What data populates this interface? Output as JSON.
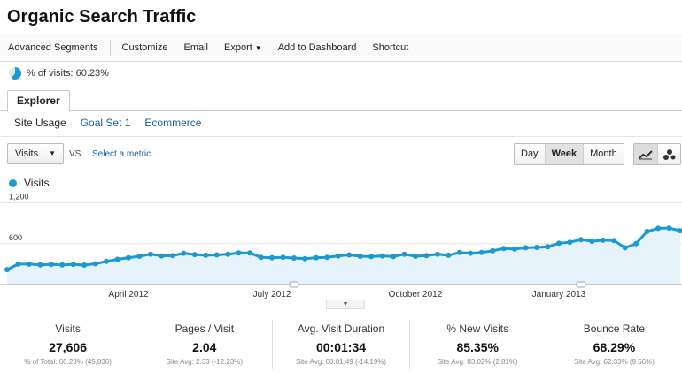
{
  "title": "Organic Search Traffic",
  "toolbar": {
    "advanced_segments": "Advanced Segments",
    "customize": "Customize",
    "email": "Email",
    "export": "Export",
    "add_to_dashboard": "Add to Dashboard",
    "shortcut": "Shortcut"
  },
  "segment": {
    "label": "% of visits: 60.23%",
    "fraction": 0.6023
  },
  "tab": {
    "explorer": "Explorer"
  },
  "subtabs": {
    "site_usage": "Site Usage",
    "goal_set": "Goal Set 1",
    "ecommerce": "Ecommerce"
  },
  "controls": {
    "metric": "Visits",
    "vs": "VS.",
    "select_metric": "Select a metric",
    "day": "Day",
    "week": "Week",
    "month": "Month",
    "selected_period": "Week"
  },
  "legend": {
    "series_name": "Visits"
  },
  "colors": {
    "series": "#1a9ad0",
    "fill": "#e6f3fa"
  },
  "chart_data": {
    "type": "area",
    "series": [
      {
        "name": "Visits",
        "values": [
          220,
          300,
          300,
          290,
          295,
          290,
          295,
          285,
          305,
          340,
          370,
          395,
          415,
          445,
          420,
          425,
          460,
          440,
          430,
          435,
          445,
          465,
          465,
          400,
          395,
          400,
          390,
          380,
          395,
          400,
          420,
          435,
          415,
          410,
          420,
          410,
          445,
          415,
          425,
          445,
          430,
          470,
          460,
          470,
          495,
          530,
          520,
          540,
          545,
          555,
          605,
          620,
          660,
          635,
          650,
          645,
          540,
          600,
          780,
          825,
          830,
          790
        ]
      }
    ],
    "ylim": [
      0,
      1350
    ],
    "y_ticks": [
      "600",
      "1,200"
    ],
    "x_tick_labels": [
      "April 2012",
      "July 2012",
      "October 2012",
      "January 2013"
    ],
    "grid": true
  },
  "stats": [
    {
      "label": "Visits",
      "value": "27,606",
      "sub": "% of Total: 60.23% (45,836)"
    },
    {
      "label": "Pages / Visit",
      "value": "2.04",
      "sub": "Site Avg: 2.33 (-12.23%)"
    },
    {
      "label": "Avg. Visit Duration",
      "value": "00:01:34",
      "sub": "Site Avg: 00:01:49 (-14.19%)"
    },
    {
      "label": "% New Visits",
      "value": "85.35%",
      "sub": "Site Avg: 83.02% (2.81%)"
    },
    {
      "label": "Bounce Rate",
      "value": "68.29%",
      "sub": "Site Avg: 62.33% (9.56%)"
    }
  ]
}
